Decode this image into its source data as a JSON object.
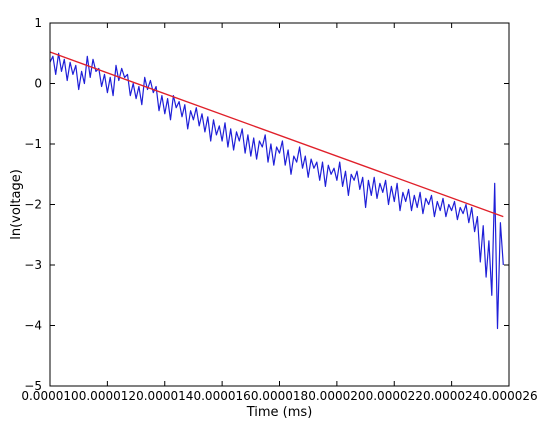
{
  "chart_data": {
    "type": "line",
    "title": "",
    "xlabel": "Time (ms)",
    "ylabel": "ln(voltage)",
    "xlim": [
      1e-05,
      2.6e-05
    ],
    "ylim": [
      -5,
      1
    ],
    "x_ticks": [
      {
        "value": 1e-05,
        "label": "0.000010"
      },
      {
        "value": 1.2e-05,
        "label": "0.000012"
      },
      {
        "value": 1.4e-05,
        "label": "0.000014"
      },
      {
        "value": 1.6e-05,
        "label": "0.000016"
      },
      {
        "value": 1.8e-05,
        "label": "0.000018"
      },
      {
        "value": 2e-05,
        "label": "0.000020"
      },
      {
        "value": 2.2e-05,
        "label": "0.000022"
      },
      {
        "value": 2.4e-05,
        "label": "0.000024"
      },
      {
        "value": 2.6e-05,
        "label": "0.000026"
      }
    ],
    "y_ticks": [
      {
        "value": 1,
        "label": "1"
      },
      {
        "value": 0,
        "label": "0"
      },
      {
        "value": -1,
        "label": "−1"
      },
      {
        "value": -2,
        "label": "−2"
      },
      {
        "value": -3,
        "label": "−3"
      },
      {
        "value": -4,
        "label": "−4"
      },
      {
        "value": -5,
        "label": "−5"
      }
    ],
    "grid": false,
    "series": [
      {
        "color": "#1f1fd8",
        "x": [
          1e-05,
          1.01e-05,
          1.02e-05,
          1.03e-05,
          1.04e-05,
          1.05e-05,
          1.06e-05,
          1.07e-05,
          1.08e-05,
          1.09e-05,
          1.1e-05,
          1.11e-05,
          1.12e-05,
          1.13e-05,
          1.14e-05,
          1.15e-05,
          1.16e-05,
          1.17e-05,
          1.18e-05,
          1.19e-05,
          1.2e-05,
          1.21e-05,
          1.22e-05,
          1.23e-05,
          1.24e-05,
          1.25e-05,
          1.26e-05,
          1.27e-05,
          1.28e-05,
          1.29e-05,
          1.3e-05,
          1.31e-05,
          1.32e-05,
          1.33e-05,
          1.34e-05,
          1.35e-05,
          1.36e-05,
          1.37e-05,
          1.38e-05,
          1.39e-05,
          1.4e-05,
          1.41e-05,
          1.42e-05,
          1.43e-05,
          1.44e-05,
          1.45e-05,
          1.46e-05,
          1.47e-05,
          1.48e-05,
          1.49e-05,
          1.5e-05,
          1.51e-05,
          1.52e-05,
          1.53e-05,
          1.54e-05,
          1.55e-05,
          1.56e-05,
          1.57e-05,
          1.58e-05,
          1.59e-05,
          1.6e-05,
          1.61e-05,
          1.62e-05,
          1.63e-05,
          1.64e-05,
          1.65e-05,
          1.66e-05,
          1.67e-05,
          1.68e-05,
          1.69e-05,
          1.7e-05,
          1.71e-05,
          1.72e-05,
          1.73e-05,
          1.74e-05,
          1.75e-05,
          1.76e-05,
          1.77e-05,
          1.78e-05,
          1.79e-05,
          1.8e-05,
          1.81e-05,
          1.82e-05,
          1.83e-05,
          1.84e-05,
          1.85e-05,
          1.86e-05,
          1.87e-05,
          1.88e-05,
          1.89e-05,
          1.9e-05,
          1.91e-05,
          1.92e-05,
          1.93e-05,
          1.94e-05,
          1.95e-05,
          1.96e-05,
          1.97e-05,
          1.98e-05,
          1.99e-05,
          2e-05,
          2.01e-05,
          2.02e-05,
          2.03e-05,
          2.04e-05,
          2.05e-05,
          2.06e-05,
          2.07e-05,
          2.08e-05,
          2.09e-05,
          2.1e-05,
          2.11e-05,
          2.12e-05,
          2.13e-05,
          2.14e-05,
          2.15e-05,
          2.16e-05,
          2.17e-05,
          2.18e-05,
          2.19e-05,
          2.2e-05,
          2.21e-05,
          2.22e-05,
          2.23e-05,
          2.24e-05,
          2.25e-05,
          2.26e-05,
          2.27e-05,
          2.28e-05,
          2.29e-05,
          2.3e-05,
          2.31e-05,
          2.32e-05,
          2.33e-05,
          2.34e-05,
          2.35e-05,
          2.36e-05,
          2.37e-05,
          2.38e-05,
          2.39e-05,
          2.4e-05,
          2.41e-05,
          2.42e-05,
          2.43e-05,
          2.44e-05,
          2.45e-05,
          2.46e-05,
          2.47e-05,
          2.48e-05,
          2.49e-05,
          2.5e-05,
          2.51e-05,
          2.52e-05,
          2.53e-05,
          2.54e-05,
          2.55e-05,
          2.56e-05,
          2.57e-05,
          2.58e-05
        ],
        "y": [
          0.35,
          0.45,
          0.15,
          0.5,
          0.2,
          0.4,
          0.05,
          0.35,
          0.15,
          0.3,
          -0.1,
          0.2,
          0.0,
          0.45,
          0.1,
          0.4,
          0.2,
          0.25,
          -0.05,
          0.15,
          -0.15,
          0.1,
          -0.2,
          0.3,
          0.05,
          0.25,
          0.1,
          0.15,
          -0.2,
          0.0,
          -0.25,
          -0.05,
          -0.35,
          0.1,
          -0.1,
          0.05,
          -0.15,
          -0.05,
          -0.45,
          -0.2,
          -0.5,
          -0.25,
          -0.6,
          -0.2,
          -0.4,
          -0.3,
          -0.55,
          -0.35,
          -0.75,
          -0.45,
          -0.6,
          -0.4,
          -0.7,
          -0.5,
          -0.8,
          -0.55,
          -0.95,
          -0.6,
          -0.85,
          -0.7,
          -0.95,
          -0.65,
          -1.05,
          -0.75,
          -1.1,
          -0.8,
          -0.95,
          -0.75,
          -1.15,
          -0.85,
          -1.2,
          -0.9,
          -1.25,
          -0.95,
          -1.05,
          -0.85,
          -1.3,
          -1.0,
          -1.35,
          -1.05,
          -1.15,
          -0.95,
          -1.35,
          -1.1,
          -1.5,
          -1.2,
          -1.3,
          -1.05,
          -1.4,
          -1.2,
          -1.55,
          -1.25,
          -1.4,
          -1.3,
          -1.6,
          -1.3,
          -1.7,
          -1.35,
          -1.5,
          -1.4,
          -1.6,
          -1.3,
          -1.7,
          -1.45,
          -1.85,
          -1.5,
          -1.6,
          -1.45,
          -1.75,
          -1.55,
          -2.05,
          -1.6,
          -1.85,
          -1.55,
          -1.9,
          -1.65,
          -1.8,
          -1.6,
          -2.0,
          -1.7,
          -1.95,
          -1.65,
          -2.1,
          -1.8,
          -1.95,
          -1.75,
          -2.1,
          -1.85,
          -2.05,
          -1.8,
          -2.15,
          -1.9,
          -2.0,
          -1.85,
          -2.2,
          -1.95,
          -2.1,
          -1.9,
          -2.2,
          -2.0,
          -2.1,
          -1.95,
          -2.25,
          -2.05,
          -2.15,
          -2.0,
          -2.3,
          -2.05,
          -2.45,
          -2.2,
          -2.95,
          -2.35,
          -3.2,
          -2.6,
          -3.5,
          -1.65,
          -4.05,
          -2.3,
          -3.0
        ]
      },
      {
        "color": "#e0202a",
        "x": [
          1e-05,
          2.58e-05
        ],
        "y": [
          0.52,
          -2.2
        ]
      }
    ]
  }
}
